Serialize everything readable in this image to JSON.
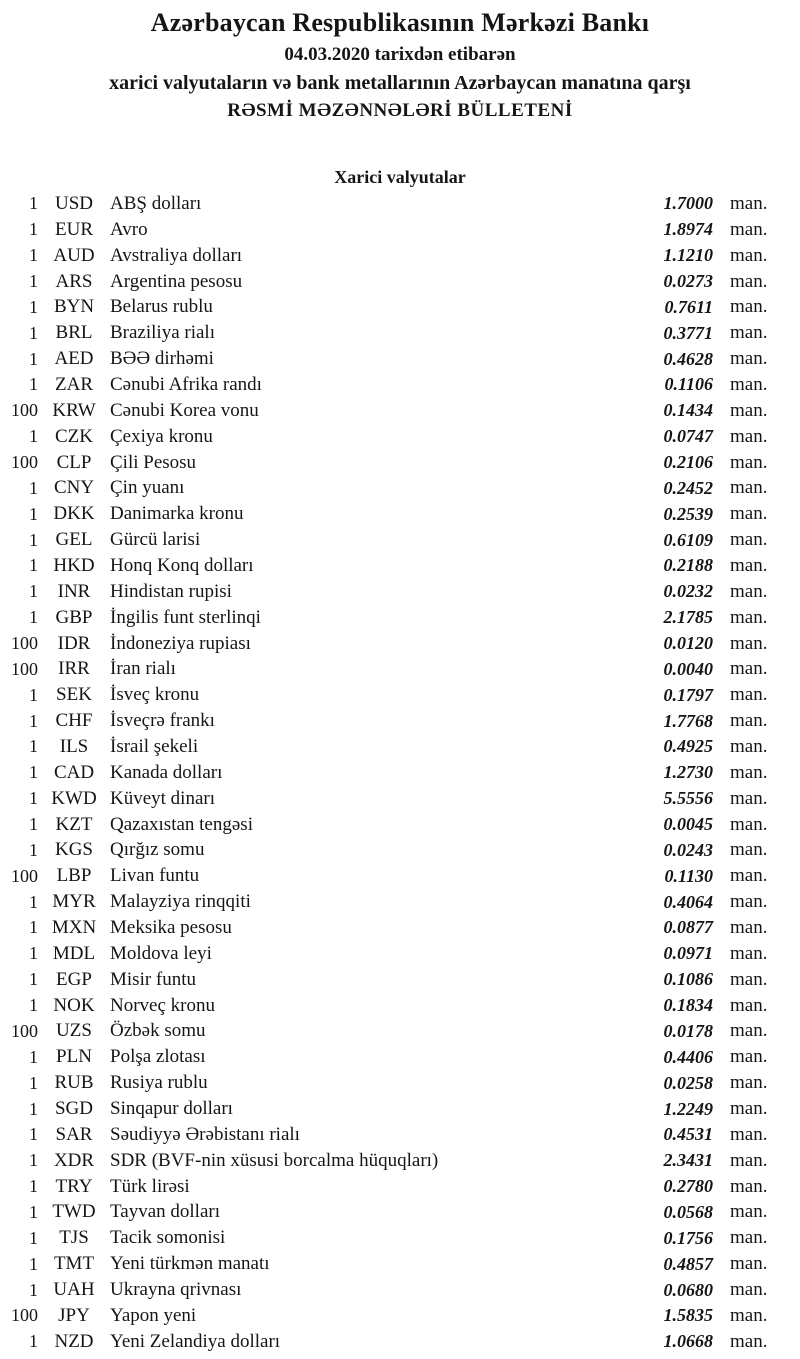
{
  "header": {
    "bank_name": "Azərbaycan Respublikasının Mərkəzi Bankı",
    "date_line": "04.03.2020 tarixdən etibarən",
    "subtitle": "xarici valyutaların və bank metallarının Azərbaycan manatına qarşı",
    "bulletin_title": "RƏSMİ MƏZƏNNƏLƏRİ BÜLLETENİ"
  },
  "section": {
    "title": "Xarici valyutalar"
  },
  "table": {
    "unit_label": "man.",
    "rows": [
      {
        "qty": "1",
        "code": "USD",
        "name": "ABŞ dolları",
        "rate": "1.7000"
      },
      {
        "qty": "1",
        "code": "EUR",
        "name": "Avro",
        "rate": "1.8974"
      },
      {
        "qty": "1",
        "code": "AUD",
        "name": "Avstraliya dolları",
        "rate": "1.1210"
      },
      {
        "qty": "1",
        "code": "ARS",
        "name": "Argentina pesosu",
        "rate": "0.0273"
      },
      {
        "qty": "1",
        "code": "BYN",
        "name": "Belarus rublu",
        "rate": "0.7611"
      },
      {
        "qty": "1",
        "code": "BRL",
        "name": "Braziliya rialı",
        "rate": "0.3771"
      },
      {
        "qty": "1",
        "code": "AED",
        "name": "BƏƏ dirhəmi",
        "rate": "0.4628"
      },
      {
        "qty": "1",
        "code": "ZAR",
        "name": "Cənubi Afrika randı",
        "rate": "0.1106"
      },
      {
        "qty": "100",
        "code": "KRW",
        "name": "Cənubi Korea vonu",
        "rate": "0.1434"
      },
      {
        "qty": "1",
        "code": "CZK",
        "name": "Çexiya kronu",
        "rate": "0.0747"
      },
      {
        "qty": "100",
        "code": "CLP",
        "name": "Çili Pesosu",
        "rate": "0.2106"
      },
      {
        "qty": "1",
        "code": "CNY",
        "name": "Çin yuanı",
        "rate": "0.2452"
      },
      {
        "qty": "1",
        "code": "DKK",
        "name": "Danimarka kronu",
        "rate": "0.2539"
      },
      {
        "qty": "1",
        "code": "GEL",
        "name": "Gürcü larisi",
        "rate": "0.6109"
      },
      {
        "qty": "1",
        "code": "HKD",
        "name": "Honq Konq dolları",
        "rate": "0.2188"
      },
      {
        "qty": "1",
        "code": "INR",
        "name": "Hindistan rupisi",
        "rate": "0.0232"
      },
      {
        "qty": "1",
        "code": "GBP",
        "name": "İngilis funt sterlinqi",
        "rate": "2.1785"
      },
      {
        "qty": "100",
        "code": "IDR",
        "name": "İndoneziya rupiası",
        "rate": "0.0120"
      },
      {
        "qty": "100",
        "code": "IRR",
        "name": "İran rialı",
        "rate": "0.0040"
      },
      {
        "qty": "1",
        "code": "SEK",
        "name": "İsveç kronu",
        "rate": "0.1797"
      },
      {
        "qty": "1",
        "code": "CHF",
        "name": "İsveçrə frankı",
        "rate": "1.7768"
      },
      {
        "qty": "1",
        "code": "ILS",
        "name": "İsrail şekeli",
        "rate": "0.4925"
      },
      {
        "qty": "1",
        "code": "CAD",
        "name": "Kanada dolları",
        "rate": "1.2730"
      },
      {
        "qty": "1",
        "code": "KWD",
        "name": "Küveyt dinarı",
        "rate": "5.5556"
      },
      {
        "qty": "1",
        "code": "KZT",
        "name": "Qazaxıstan tengəsi",
        "rate": "0.0045"
      },
      {
        "qty": "1",
        "code": "KGS",
        "name": "Qırğız somu",
        "rate": "0.0243"
      },
      {
        "qty": "100",
        "code": "LBP",
        "name": "Livan funtu",
        "rate": "0.1130"
      },
      {
        "qty": "1",
        "code": "MYR",
        "name": "Malayziya rinqqiti",
        "rate": "0.4064"
      },
      {
        "qty": "1",
        "code": "MXN",
        "name": "Meksika pesosu",
        "rate": "0.0877"
      },
      {
        "qty": "1",
        "code": "MDL",
        "name": "Moldova leyi",
        "rate": "0.0971"
      },
      {
        "qty": "1",
        "code": "EGP",
        "name": "Misir funtu",
        "rate": "0.1086"
      },
      {
        "qty": "1",
        "code": "NOK",
        "name": "Norveç kronu",
        "rate": "0.1834"
      },
      {
        "qty": "100",
        "code": "UZS",
        "name": "Özbək somu",
        "rate": "0.0178"
      },
      {
        "qty": "1",
        "code": "PLN",
        "name": "Polşa zlotası",
        "rate": "0.4406"
      },
      {
        "qty": "1",
        "code": "RUB",
        "name": "Rusiya rublu",
        "rate": "0.0258"
      },
      {
        "qty": "1",
        "code": "SGD",
        "name": "Sinqapur dolları",
        "rate": "1.2249"
      },
      {
        "qty": "1",
        "code": "SAR",
        "name": "Səudiyyə Ərəbistanı rialı",
        "rate": "0.4531"
      },
      {
        "qty": "1",
        "code": "XDR",
        "name": "SDR (BVF-nin xüsusi borcalma hüquqları)",
        "rate": "2.3431"
      },
      {
        "qty": "1",
        "code": "TRY",
        "name": "Türk lirəsi",
        "rate": "0.2780"
      },
      {
        "qty": "1",
        "code": "TWD",
        "name": "Tayvan dolları",
        "rate": "0.0568"
      },
      {
        "qty": "1",
        "code": "TJS",
        "name": "Tacik somonisi",
        "rate": "0.1756"
      },
      {
        "qty": "1",
        "code": "TMT",
        "name": "Yeni türkmən manatı",
        "rate": "0.4857"
      },
      {
        "qty": "1",
        "code": "UAH",
        "name": "Ukrayna qrivnası",
        "rate": "0.0680"
      },
      {
        "qty": "100",
        "code": "JPY",
        "name": "Yapon yeni",
        "rate": "1.5835"
      },
      {
        "qty": "1",
        "code": "NZD",
        "name": "Yeni Zelandiya dolları",
        "rate": "1.0668"
      }
    ]
  }
}
